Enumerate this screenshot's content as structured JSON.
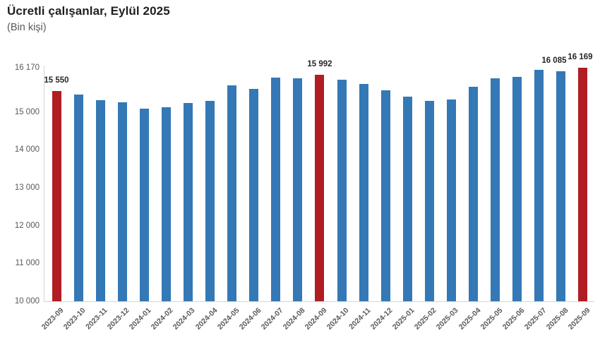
{
  "header": {
    "title": "Ücretli çalışanlar, Eylül 2025",
    "subtitle": "(Bin kişi)"
  },
  "chart_data": {
    "type": "bar",
    "title": "Ücretli çalışanlar, Eylül 2025",
    "subtitle": "(Bin kişi)",
    "xlabel": "",
    "ylabel": "Bin kişi",
    "grid": false,
    "legend": null,
    "ylim": [
      10000,
      16170
    ],
    "categories": [
      "2023-09",
      "2023-10",
      "2023-11",
      "2023-12",
      "2024-01",
      "2024-02",
      "2024-03",
      "2024-04",
      "2024-05",
      "2024-06",
      "2024-07",
      "2024-08",
      "2024-09",
      "2024-10",
      "2024-11",
      "2024-12",
      "2025-01",
      "2025-02",
      "2025-03",
      "2025-04",
      "2025-05",
      "2025-06",
      "2025-07",
      "2025-08",
      "2025-09"
    ],
    "values": [
      15550,
      15460,
      15310,
      15250,
      15080,
      15135,
      15240,
      15300,
      15700,
      15610,
      15900,
      15890,
      15992,
      15860,
      15750,
      15580,
      15415,
      15300,
      15330,
      15660,
      15890,
      15935,
      16120,
      16085,
      16169
    ],
    "data_labels": [
      "15 550",
      null,
      null,
      null,
      null,
      null,
      null,
      null,
      null,
      null,
      null,
      null,
      "15 992",
      null,
      null,
      null,
      null,
      null,
      null,
      null,
      null,
      null,
      null,
      "16 085",
      "16 169"
    ],
    "highlight_indices": [
      0,
      12,
      24
    ],
    "y_ticks": [
      {
        "value": 16170,
        "label": "16 170"
      },
      {
        "value": 15000,
        "label": "15 000"
      },
      {
        "value": 14000,
        "label": "14 000"
      },
      {
        "value": 13000,
        "label": "13 000"
      },
      {
        "value": 12000,
        "label": "12 000"
      },
      {
        "value": 11000,
        "label": "11 000"
      },
      {
        "value": 10000,
        "label": "10 000"
      }
    ],
    "colors": {
      "bar": "#3478b6",
      "highlight": "#b01e23",
      "axis_line": "#d6d6d6",
      "tick_text": "#595959",
      "value_label_text": "#262626"
    }
  }
}
